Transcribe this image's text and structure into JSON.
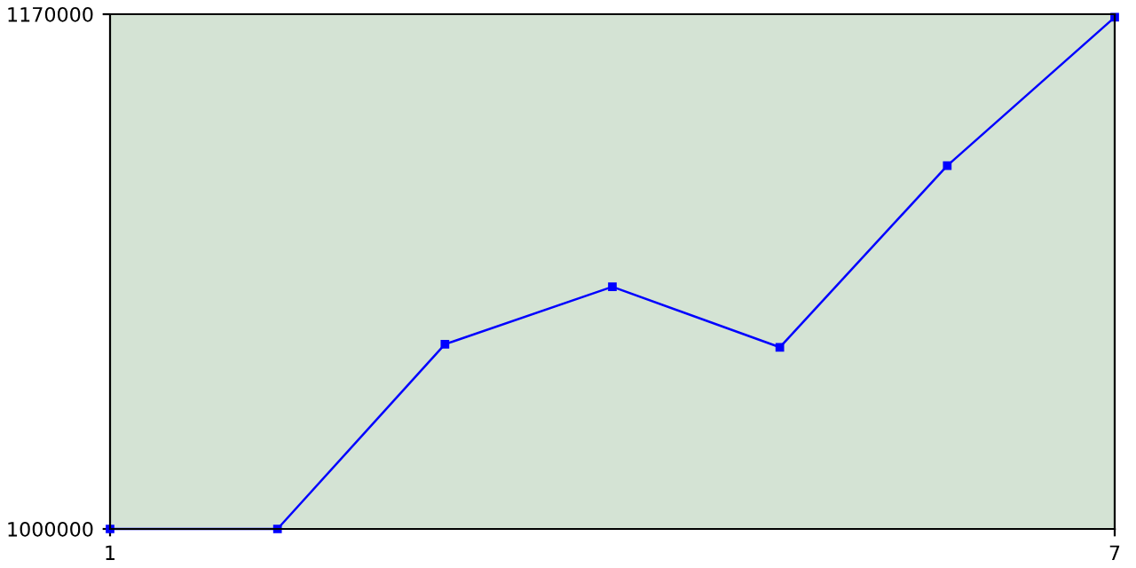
{
  "chart_data": {
    "type": "line",
    "x": [
      1,
      2,
      3,
      4,
      5,
      6,
      7
    ],
    "series": [
      {
        "color": "#0000ff",
        "values": [
          1000000,
          1000000,
          1061000,
          1080000,
          1060000,
          1120000,
          1169000
        ]
      }
    ],
    "xlim": [
      1,
      7
    ],
    "xticks": [
      1,
      7
    ],
    "ylim": [
      1000000,
      1170000
    ],
    "yticks": [
      1000000,
      1170000
    ],
    "grid": false,
    "marker": "square",
    "line_style": "solid"
  }
}
